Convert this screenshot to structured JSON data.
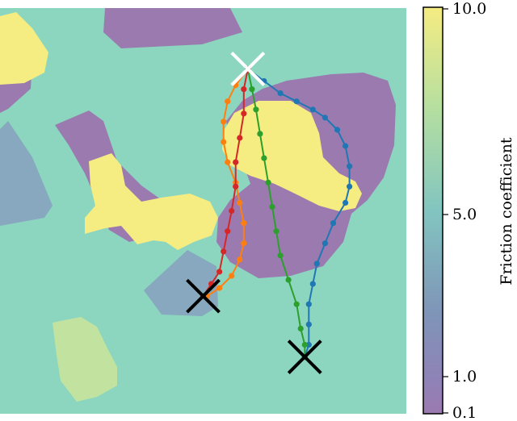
{
  "chart_data": {
    "type": "heatmap",
    "description_of_content": "Friction map with trajectories from a start marker to goal markers",
    "colorbar": {
      "label": "Friction coefficient",
      "ticks": [
        {
          "value": 10.0,
          "label": "10.0"
        },
        {
          "value": 5.0,
          "label": "5.0"
        },
        {
          "value": 1.0,
          "label": "1.0"
        },
        {
          "value": 0.1,
          "label": "0.1"
        }
      ],
      "range": [
        0.1,
        10.0
      ],
      "colormap": "viridis"
    },
    "region_levels": {
      "background": 5.6,
      "low": 0.1,
      "high": 10.0,
      "mid_blue": 4.0,
      "light_green": 7.8
    },
    "markers": {
      "start": {
        "x": 0.61,
        "y": 0.85,
        "color": "#ffffff"
      },
      "goals": [
        {
          "x": 0.5,
          "y": 0.29,
          "color": "#000000"
        },
        {
          "x": 0.75,
          "y": 0.14,
          "color": "#000000"
        }
      ]
    },
    "series": [
      {
        "color": "#1f77b4",
        "points": [
          [
            0.61,
            0.85
          ],
          [
            0.65,
            0.82
          ],
          [
            0.69,
            0.79
          ],
          [
            0.73,
            0.77
          ],
          [
            0.77,
            0.75
          ],
          [
            0.8,
            0.73
          ],
          [
            0.83,
            0.7
          ],
          [
            0.85,
            0.66
          ],
          [
            0.86,
            0.61
          ],
          [
            0.86,
            0.56
          ],
          [
            0.85,
            0.52
          ],
          [
            0.82,
            0.47
          ],
          [
            0.8,
            0.42
          ],
          [
            0.78,
            0.37
          ],
          [
            0.77,
            0.32
          ],
          [
            0.76,
            0.27
          ],
          [
            0.76,
            0.22
          ],
          [
            0.76,
            0.17
          ],
          [
            0.75,
            0.14
          ]
        ]
      },
      {
        "color": "#2ca02c",
        "points": [
          [
            0.61,
            0.85
          ],
          [
            0.62,
            0.8
          ],
          [
            0.63,
            0.75
          ],
          [
            0.64,
            0.69
          ],
          [
            0.65,
            0.63
          ],
          [
            0.66,
            0.57
          ],
          [
            0.67,
            0.51
          ],
          [
            0.68,
            0.45
          ],
          [
            0.69,
            0.39
          ],
          [
            0.71,
            0.33
          ],
          [
            0.73,
            0.27
          ],
          [
            0.74,
            0.21
          ],
          [
            0.75,
            0.17
          ],
          [
            0.75,
            0.14
          ]
        ]
      },
      {
        "color": "#ff7f0e",
        "points": [
          [
            0.61,
            0.85
          ],
          [
            0.58,
            0.81
          ],
          [
            0.56,
            0.77
          ],
          [
            0.55,
            0.72
          ],
          [
            0.55,
            0.67
          ],
          [
            0.56,
            0.62
          ],
          [
            0.58,
            0.57
          ],
          [
            0.59,
            0.52
          ],
          [
            0.6,
            0.47
          ],
          [
            0.6,
            0.42
          ],
          [
            0.59,
            0.38
          ],
          [
            0.57,
            0.34
          ],
          [
            0.54,
            0.31
          ],
          [
            0.51,
            0.29
          ]
        ]
      },
      {
        "color": "#d62728",
        "points": [
          [
            0.61,
            0.85
          ],
          [
            0.6,
            0.8
          ],
          [
            0.6,
            0.74
          ],
          [
            0.59,
            0.68
          ],
          [
            0.58,
            0.62
          ],
          [
            0.58,
            0.56
          ],
          [
            0.57,
            0.5
          ],
          [
            0.56,
            0.45
          ],
          [
            0.55,
            0.4
          ],
          [
            0.54,
            0.35
          ],
          [
            0.52,
            0.32
          ],
          [
            0.5,
            0.29
          ]
        ]
      }
    ]
  }
}
